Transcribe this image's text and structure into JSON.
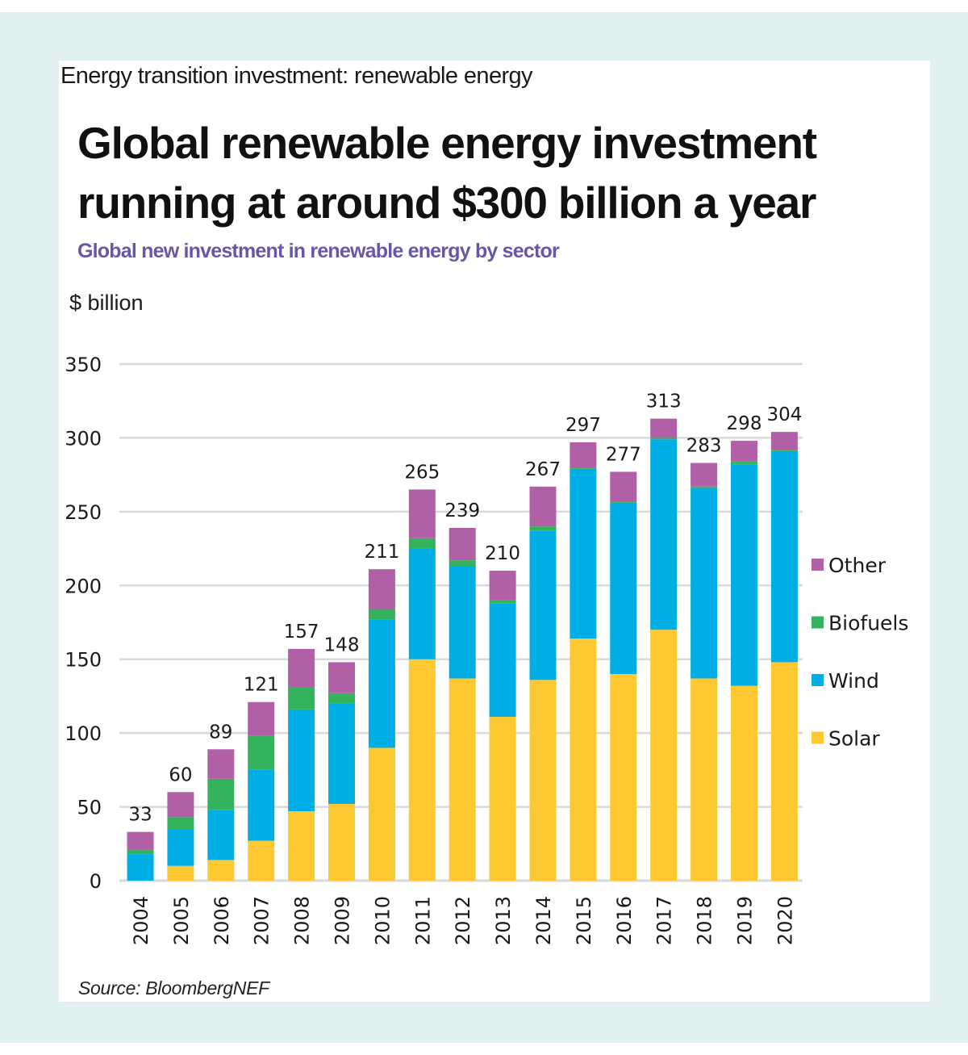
{
  "header": {
    "kicker": "Energy transition investment: renewable energy",
    "headline_line1": "Global renewable energy investment",
    "headline_line2": "running at around $300 billion a year",
    "subtitle": "Global new investment in renewable energy by sector",
    "unit_label": "$ billion"
  },
  "source": "Source: BloombergNEF",
  "colors": {
    "background": "#e1f1f1",
    "subtitle": "#6a56a8",
    "Solar": "#fec832",
    "Wind": "#00aee6",
    "Biofuels": "#33b35b",
    "Other": "#b15fa6",
    "gridline": "#d9d9d9"
  },
  "chart_data": {
    "type": "bar",
    "stacked": true,
    "title": "Global new investment in renewable energy by sector",
    "xlabel": "",
    "ylabel": "$ billion",
    "ylim": [
      0,
      350
    ],
    "yticks": [
      0,
      50,
      100,
      150,
      200,
      250,
      300,
      350
    ],
    "grid": true,
    "legend_position": "right",
    "legend_order": [
      "Other",
      "Biofuels",
      "Wind",
      "Solar"
    ],
    "categories": [
      "2004",
      "2005",
      "2006",
      "2007",
      "2008",
      "2009",
      "2010",
      "2011",
      "2012",
      "2013",
      "2014",
      "2015",
      "2016",
      "2017",
      "2018",
      "2019",
      "2020"
    ],
    "series": [
      {
        "name": "Solar",
        "values": [
          0,
          10,
          14,
          27,
          47,
          52,
          90,
          150,
          137,
          111,
          136,
          164,
          140,
          170,
          137,
          132,
          148
        ]
      },
      {
        "name": "Wind",
        "values": [
          18,
          25,
          34,
          48,
          69,
          68,
          87,
          75,
          76,
          77,
          101,
          115,
          116,
          129,
          129,
          150,
          143
        ]
      },
      {
        "name": "Biofuels",
        "values": [
          3,
          8,
          21,
          23,
          15,
          7,
          7,
          7,
          4,
          2,
          3,
          1,
          0.5,
          1,
          1,
          2,
          1
        ]
      },
      {
        "name": "Other",
        "values": [
          12,
          17,
          20,
          23,
          26,
          21,
          27,
          33,
          22,
          20,
          27,
          17,
          20.5,
          13,
          16,
          14,
          12
        ]
      }
    ],
    "totals": [
      33,
      60,
      89,
      121,
      157,
      148,
      211,
      265,
      239,
      210,
      267,
      297,
      277,
      313,
      283,
      298,
      304
    ]
  }
}
